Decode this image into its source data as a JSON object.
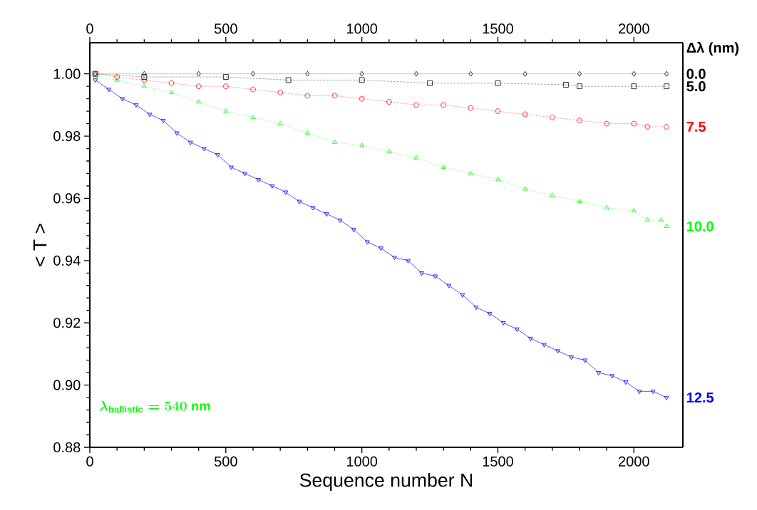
{
  "chart_data": {
    "type": "line",
    "xlabel": "Sequence number N",
    "ylabel": "< T >",
    "legend_title": "Δλ (nm)",
    "xlim": [
      0,
      2180
    ],
    "ylim": [
      0.88,
      1.01
    ],
    "x2lim": [
      0,
      2180
    ],
    "x2ticks": [
      0,
      500,
      1000,
      1500,
      2000
    ],
    "xticks": [
      0,
      500,
      1000,
      1500,
      2000
    ],
    "yticks": [
      {
        "value": 0.88,
        "label": "0.88"
      },
      {
        "value": 0.9,
        "label": "0.90"
      },
      {
        "value": 0.92,
        "label": "0.92"
      },
      {
        "value": 0.94,
        "label": "0.94"
      },
      {
        "value": 0.96,
        "label": "0.96"
      },
      {
        "value": 0.98,
        "label": "0.98"
      },
      {
        "value": 1.0,
        "label": "1.00"
      }
    ],
    "annotations": [
      "\\lambda_{\\mathrm{ballistic}} = 540\\ \\mathrm{nm}"
    ],
    "series": [
      {
        "name": "0.0",
        "color": "#000000",
        "marker": "diamond",
        "line_style": "dotted",
        "x": [
          20,
          200,
          400,
          600,
          800,
          1000,
          1200,
          1400,
          1600,
          1800,
          2000,
          2120
        ],
        "values": [
          1.0,
          1.0,
          1.0,
          1.0,
          1.0,
          1.0,
          1.0,
          1.0,
          1.0,
          1.0,
          1.0,
          1.0
        ]
      },
      {
        "name": "5.0",
        "color": "#000000",
        "marker": "square",
        "line_style": "dotted",
        "x": [
          20,
          200,
          500,
          730,
          1000,
          1250,
          1500,
          1750,
          1800,
          2000,
          2120
        ],
        "values": [
          1.0,
          0.999,
          0.999,
          0.998,
          0.998,
          0.997,
          0.997,
          0.9965,
          0.996,
          0.996,
          0.996
        ]
      },
      {
        "name": "7.5",
        "color": "#ff0000",
        "marker": "circle",
        "line_style": "dotted",
        "x": [
          20,
          100,
          200,
          300,
          400,
          500,
          600,
          700,
          800,
          900,
          1000,
          1100,
          1200,
          1300,
          1400,
          1500,
          1600,
          1700,
          1800,
          1900,
          2000,
          2050,
          2120
        ],
        "values": [
          1.0,
          0.999,
          0.998,
          0.997,
          0.996,
          0.996,
          0.995,
          0.994,
          0.993,
          0.993,
          0.992,
          0.991,
          0.99,
          0.99,
          0.989,
          0.988,
          0.987,
          0.986,
          0.985,
          0.984,
          0.984,
          0.983,
          0.983
        ]
      },
      {
        "name": "10.0",
        "color": "#00ff00",
        "marker": "triangle",
        "line_style": "dotted",
        "x": [
          20,
          100,
          200,
          300,
          400,
          500,
          600,
          700,
          800,
          900,
          1000,
          1100,
          1200,
          1300,
          1400,
          1500,
          1600,
          1700,
          1800,
          1900,
          2000,
          2050,
          2100,
          2120
        ],
        "values": [
          0.999,
          0.998,
          0.996,
          0.994,
          0.991,
          0.988,
          0.986,
          0.984,
          0.981,
          0.978,
          0.977,
          0.975,
          0.973,
          0.97,
          0.968,
          0.966,
          0.963,
          0.961,
          0.959,
          0.957,
          0.956,
          0.953,
          0.953,
          0.951
        ]
      },
      {
        "name": "12.5",
        "color": "#0000ff",
        "marker": "triangle",
        "line_style": "solid",
        "x": [
          20,
          70,
          120,
          170,
          220,
          270,
          320,
          370,
          420,
          470,
          520,
          570,
          620,
          670,
          720,
          770,
          820,
          870,
          920,
          970,
          1020,
          1070,
          1120,
          1170,
          1220,
          1270,
          1320,
          1370,
          1420,
          1470,
          1520,
          1570,
          1620,
          1670,
          1720,
          1770,
          1820,
          1870,
          1920,
          1970,
          2020,
          2070,
          2120
        ],
        "values": [
          0.998,
          0.995,
          0.992,
          0.99,
          0.987,
          0.985,
          0.981,
          0.978,
          0.976,
          0.974,
          0.97,
          0.968,
          0.966,
          0.964,
          0.962,
          0.959,
          0.957,
          0.955,
          0.953,
          0.95,
          0.946,
          0.944,
          0.941,
          0.94,
          0.936,
          0.935,
          0.932,
          0.929,
          0.925,
          0.923,
          0.92,
          0.918,
          0.915,
          0.913,
          0.911,
          0.909,
          0.908,
          0.904,
          0.903,
          0.901,
          0.898,
          0.898,
          0.896
        ]
      }
    ]
  }
}
